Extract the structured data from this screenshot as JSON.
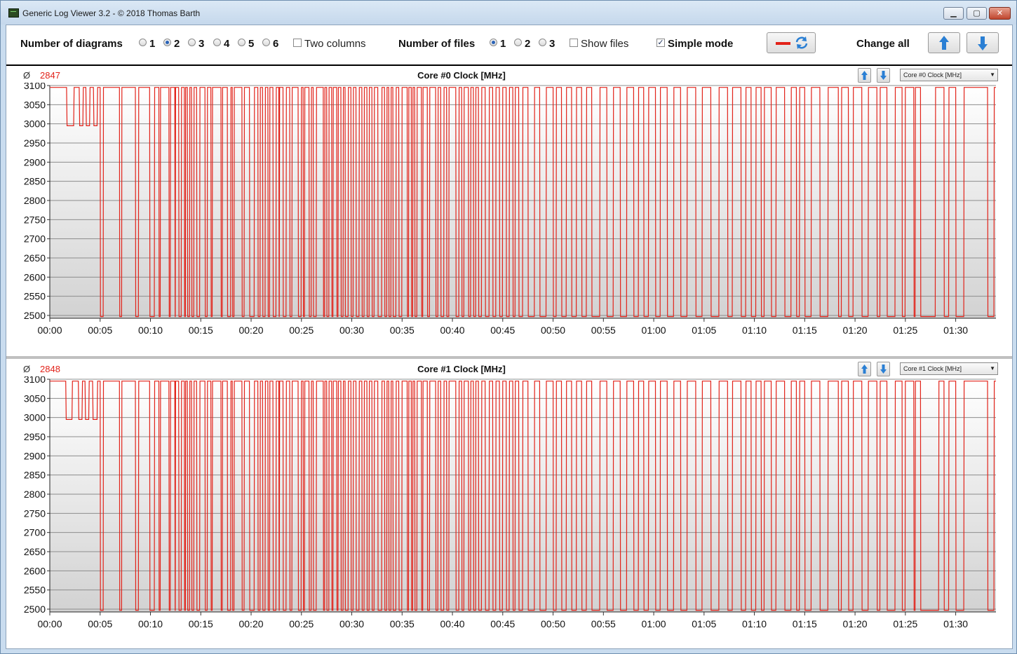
{
  "window": {
    "title": "Generic Log Viewer 3.2 - © 2018 Thomas Barth"
  },
  "toolbar": {
    "diagrams_label": "Number of diagrams",
    "diagram_options": [
      "1",
      "2",
      "3",
      "4",
      "5",
      "6"
    ],
    "diagram_selected": "2",
    "two_columns_label": "Two columns",
    "two_columns_checked": false,
    "files_label": "Number of files",
    "file_options": [
      "1",
      "2",
      "3"
    ],
    "file_selected": "1",
    "show_files_label": "Show files",
    "show_files_checked": false,
    "simple_mode_label": "Simple mode",
    "simple_mode_checked": true,
    "change_all_label": "Change all"
  },
  "colors": {
    "series": "#e2231a",
    "accent_blue": "#2a7fd4"
  },
  "icons": [
    "app-icon",
    "minimize-icon",
    "maximize-icon",
    "close-icon",
    "red-line-icon",
    "refresh-icon",
    "arrow-up-icon",
    "arrow-down-icon",
    "chevron-down-icon"
  ],
  "panels": [
    {
      "avg_symbol": "Ø",
      "avg_value": "2847",
      "title": "Core #0 Clock [MHz]",
      "selector": "Core #0 Clock [MHz]"
    },
    {
      "avg_symbol": "Ø",
      "avg_value": "2848",
      "title": "Core #1 Clock [MHz]",
      "selector": "Core #1 Clock [MHz]"
    }
  ],
  "chart_data": [
    {
      "type": "line",
      "title": "Core #0 Clock [MHz]",
      "xlabel": "",
      "ylabel": "",
      "ylim": [
        2500,
        3100
      ],
      "xlim_seconds": [
        0,
        5640
      ],
      "y_ticks": [
        "3100",
        "3050",
        "3000",
        "2950",
        "2900",
        "2850",
        "2800",
        "2750",
        "2700",
        "2650",
        "2600",
        "2550",
        "2500"
      ],
      "x_ticks": [
        "00:00",
        "00:05",
        "00:10",
        "00:15",
        "00:20",
        "00:25",
        "00:30",
        "00:35",
        "00:40",
        "00:45",
        "00:50",
        "00:55",
        "01:00",
        "01:05",
        "01:10",
        "01:15",
        "01:20",
        "01:25",
        "01:30"
      ],
      "grid": true,
      "series": [
        {
          "high": 3095,
          "low": 2497,
          "early_low": 2995,
          "early_dips": [
            [
              100,
              145
            ],
            [
              175,
              200
            ],
            [
              215,
              240
            ],
            [
              260,
              285
            ]
          ],
          "drops": [
            [
              300,
              320
            ],
            [
              415,
              430
            ],
            [
              510,
              530
            ],
            [
              595,
              625
            ],
            [
              650,
              660
            ],
            [
              710,
              720
            ],
            [
              745,
              750
            ],
            [
              768,
              785
            ],
            [
              802,
              810
            ],
            [
              820,
              835
            ],
            [
              845,
              860
            ],
            [
              875,
              895
            ],
            [
              925,
              940
            ],
            [
              960,
              970
            ],
            [
              1020,
              1030
            ],
            [
              1058,
              1080
            ],
            [
              1088,
              1100
            ],
            [
              1145,
              1160
            ],
            [
              1190,
              1220
            ],
            [
              1240,
              1255
            ],
            [
              1268,
              1285
            ],
            [
              1300,
              1312
            ],
            [
              1330,
              1350
            ],
            [
              1365,
              1370
            ],
            [
              1390,
              1410
            ],
            [
              1430,
              1445
            ],
            [
              1480,
              1500
            ],
            [
              1510,
              1520
            ],
            [
              1545,
              1560
            ],
            [
              1570,
              1590
            ],
            [
              1630,
              1640
            ],
            [
              1650,
              1665
            ],
            [
              1680,
              1690
            ],
            [
              1710,
              1720
            ],
            [
              1735,
              1750
            ],
            [
              1760,
              1780
            ],
            [
              1795,
              1810
            ],
            [
              1825,
              1845
            ],
            [
              1860,
              1875
            ],
            [
              1890,
              1905
            ],
            [
              1920,
              1935
            ],
            [
              1955,
              1980
            ],
            [
              1995,
              2010
            ],
            [
              2020,
              2035
            ],
            [
              2045,
              2065
            ],
            [
              2080,
              2100
            ],
            [
              2130,
              2140
            ],
            [
              2155,
              2165
            ],
            [
              2175,
              2190
            ],
            [
              2215,
              2225
            ],
            [
              2250,
              2265
            ],
            [
              2300,
              2315
            ],
            [
              2330,
              2350
            ],
            [
              2365,
              2380
            ],
            [
              2420,
              2440
            ],
            [
              2455,
              2470
            ],
            [
              2495,
              2510
            ],
            [
              2525,
              2540
            ],
            [
              2555,
              2575
            ],
            [
              2595,
              2620
            ],
            [
              2640,
              2660
            ],
            [
              2680,
              2700
            ],
            [
              2720,
              2740
            ],
            [
              2760,
              2775
            ],
            [
              2795,
              2820
            ],
            [
              2850,
              2890
            ],
            [
              2920,
              2960
            ],
            [
              3000,
              3020
            ],
            [
              3050,
              3080
            ],
            [
              3110,
              3140
            ],
            [
              3170,
              3200
            ],
            [
              3230,
              3280
            ],
            [
              3320,
              3360
            ],
            [
              3400,
              3440
            ],
            [
              3480,
              3510
            ],
            [
              3540,
              3570
            ],
            [
              3610,
              3640
            ],
            [
              3680,
              3720
            ],
            [
              3760,
              3800
            ],
            [
              3850,
              3890
            ],
            [
              3940,
              3990
            ],
            [
              4040,
              4070
            ],
            [
              4120,
              4150
            ],
            [
              4180,
              4210
            ],
            [
              4240,
              4260
            ],
            [
              4300,
              4330
            ],
            [
              4380,
              4420
            ],
            [
              4450,
              4470
            ],
            [
              4500,
              4540
            ],
            [
              4590,
              4640
            ],
            [
              4700,
              4720
            ],
            [
              4760,
              4790
            ],
            [
              4840,
              4880
            ],
            [
              4930,
              4950
            ],
            [
              4990,
              5040
            ],
            [
              5080,
              5100
            ],
            [
              5150,
              5160
            ],
            [
              5190,
              5280
            ],
            [
              5330,
              5360
            ],
            [
              5400,
              5450
            ],
            [
              5590,
              5630
            ]
          ]
        }
      ]
    },
    {
      "type": "line",
      "title": "Core #1 Clock [MHz]",
      "xlabel": "",
      "ylabel": "",
      "ylim": [
        2500,
        3100
      ],
      "xlim_seconds": [
        0,
        5640
      ],
      "y_ticks": [
        "3100",
        "3050",
        "3000",
        "2950",
        "2900",
        "2850",
        "2800",
        "2750",
        "2700",
        "2650",
        "2600",
        "2550",
        "2500"
      ],
      "x_ticks": [
        "00:00",
        "00:05",
        "00:10",
        "00:15",
        "00:20",
        "00:25",
        "00:30",
        "00:35",
        "00:40",
        "00:45",
        "00:50",
        "00:55",
        "01:00",
        "01:05",
        "01:10",
        "01:15",
        "01:20",
        "01:25",
        "01:30"
      ],
      "grid": true,
      "series": [
        {
          "high": 3095,
          "low": 2497,
          "early_low": 2995,
          "early_dips": [
            [
              95,
              135
            ],
            [
              170,
              195
            ],
            [
              210,
              235
            ],
            [
              255,
              285
            ]
          ],
          "drops": [
            [
              300,
              320
            ],
            [
              415,
              430
            ],
            [
              510,
              530
            ],
            [
              595,
              625
            ],
            [
              650,
              660
            ],
            [
              710,
              720
            ],
            [
              745,
              750
            ],
            [
              768,
              785
            ],
            [
              802,
              810
            ],
            [
              820,
              835
            ],
            [
              845,
              860
            ],
            [
              875,
              895
            ],
            [
              925,
              940
            ],
            [
              960,
              970
            ],
            [
              1020,
              1030
            ],
            [
              1058,
              1080
            ],
            [
              1088,
              1100
            ],
            [
              1145,
              1160
            ],
            [
              1190,
              1220
            ],
            [
              1240,
              1255
            ],
            [
              1268,
              1285
            ],
            [
              1300,
              1312
            ],
            [
              1330,
              1350
            ],
            [
              1365,
              1370
            ],
            [
              1390,
              1410
            ],
            [
              1430,
              1445
            ],
            [
              1480,
              1500
            ],
            [
              1510,
              1520
            ],
            [
              1545,
              1560
            ],
            [
              1570,
              1590
            ],
            [
              1630,
              1640
            ],
            [
              1650,
              1665
            ],
            [
              1680,
              1690
            ],
            [
              1710,
              1720
            ],
            [
              1735,
              1750
            ],
            [
              1760,
              1780
            ],
            [
              1795,
              1810
            ],
            [
              1825,
              1845
            ],
            [
              1860,
              1875
            ],
            [
              1890,
              1905
            ],
            [
              1920,
              1935
            ],
            [
              1955,
              1980
            ],
            [
              1995,
              2010
            ],
            [
              2020,
              2035
            ],
            [
              2045,
              2065
            ],
            [
              2080,
              2100
            ],
            [
              2130,
              2140
            ],
            [
              2155,
              2165
            ],
            [
              2175,
              2190
            ],
            [
              2215,
              2225
            ],
            [
              2250,
              2265
            ],
            [
              2300,
              2315
            ],
            [
              2330,
              2350
            ],
            [
              2365,
              2380
            ],
            [
              2420,
              2440
            ],
            [
              2455,
              2470
            ],
            [
              2495,
              2510
            ],
            [
              2525,
              2540
            ],
            [
              2555,
              2575
            ],
            [
              2595,
              2620
            ],
            [
              2640,
              2660
            ],
            [
              2680,
              2700
            ],
            [
              2720,
              2740
            ],
            [
              2760,
              2775
            ],
            [
              2795,
              2820
            ],
            [
              2850,
              2890
            ],
            [
              2920,
              2960
            ],
            [
              3000,
              3020
            ],
            [
              3050,
              3080
            ],
            [
              3110,
              3140
            ],
            [
              3170,
              3200
            ],
            [
              3230,
              3280
            ],
            [
              3320,
              3360
            ],
            [
              3400,
              3440
            ],
            [
              3480,
              3510
            ],
            [
              3540,
              3570
            ],
            [
              3610,
              3640
            ],
            [
              3680,
              3720
            ],
            [
              3760,
              3800
            ],
            [
              3850,
              3890
            ],
            [
              3940,
              3990
            ],
            [
              4040,
              4070
            ],
            [
              4120,
              4150
            ],
            [
              4180,
              4210
            ],
            [
              4240,
              4260
            ],
            [
              4300,
              4330
            ],
            [
              4380,
              4420
            ],
            [
              4450,
              4470
            ],
            [
              4500,
              4540
            ],
            [
              4590,
              4640
            ],
            [
              4700,
              4720
            ],
            [
              4760,
              4790
            ],
            [
              4840,
              4880
            ],
            [
              4930,
              4950
            ],
            [
              4990,
              5040
            ],
            [
              5080,
              5100
            ],
            [
              5150,
              5160
            ],
            [
              5190,
              5300
            ],
            [
              5330,
              5360
            ],
            [
              5400,
              5450
            ],
            [
              5590,
              5630
            ]
          ]
        }
      ]
    }
  ]
}
